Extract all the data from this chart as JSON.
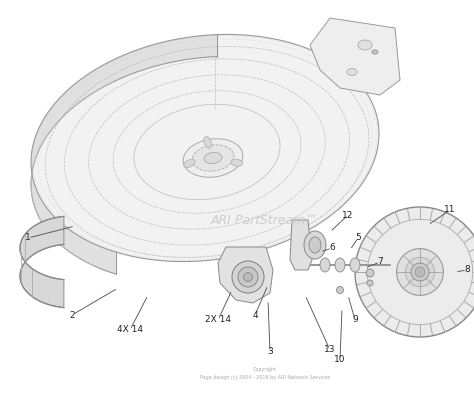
{
  "bg_color": "#ffffff",
  "watermark_text": "ARI PartStream™",
  "watermark_color": "#c8c8c8",
  "watermark_fontsize": 9,
  "copyright_line1": "Copyright",
  "copyright_line2": "Page design (c) 2004 - 2016 by ARI Network Services",
  "line_color": "#aaaaaa",
  "dark_line_color": "#888888",
  "label_fontsize": 6.5,
  "label_color": "#222222",
  "deck_fill": "#f5f5f5",
  "deck_edge": "#999999",
  "part_fill": "#e8e8e8",
  "part_edge": "#888888"
}
